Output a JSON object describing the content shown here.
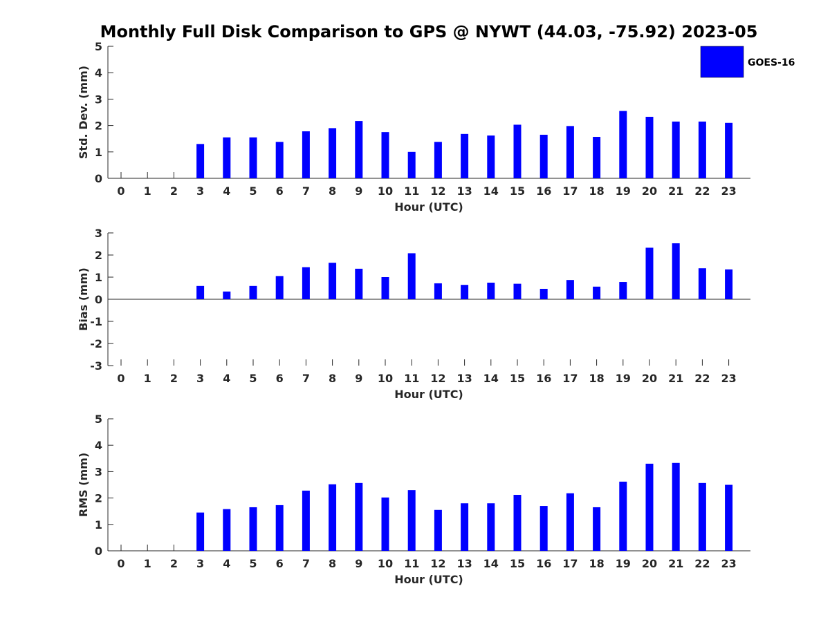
{
  "title": "Monthly Full Disk Comparison to GPS @ NYWT (44.03, -75.92) 2023-05",
  "legend": {
    "label": "GOES-16",
    "color": "#0000ff",
    "placement": "top-right"
  },
  "chart_data": [
    {
      "type": "bar",
      "categories": [
        "0",
        "1",
        "2",
        "3",
        "4",
        "5",
        "6",
        "7",
        "8",
        "9",
        "10",
        "11",
        "12",
        "13",
        "14",
        "15",
        "16",
        "17",
        "18",
        "19",
        "20",
        "21",
        "22",
        "23"
      ],
      "series": [
        {
          "name": "GOES-16",
          "values": [
            null,
            null,
            null,
            1.3,
            1.55,
            1.55,
            1.38,
            1.78,
            1.9,
            2.17,
            1.75,
            1.0,
            1.38,
            1.68,
            1.62,
            2.03,
            1.65,
            1.98,
            1.57,
            2.55,
            2.33,
            2.15,
            2.15,
            2.1
          ]
        }
      ],
      "xlabel": "Hour (UTC)",
      "ylabel": "Std. Dev. (mm)",
      "ylim": [
        0,
        5
      ],
      "yticks": [
        "0",
        "1",
        "2",
        "3",
        "4",
        "5"
      ],
      "grid": false
    },
    {
      "type": "bar",
      "categories": [
        "0",
        "1",
        "2",
        "3",
        "4",
        "5",
        "6",
        "7",
        "8",
        "9",
        "10",
        "11",
        "12",
        "13",
        "14",
        "15",
        "16",
        "17",
        "18",
        "19",
        "20",
        "21",
        "22",
        "23"
      ],
      "series": [
        {
          "name": "GOES-16",
          "values": [
            null,
            null,
            null,
            0.6,
            0.35,
            0.6,
            1.05,
            1.45,
            1.65,
            1.38,
            1.0,
            2.08,
            0.72,
            0.65,
            0.75,
            0.7,
            0.47,
            0.87,
            0.57,
            0.78,
            2.33,
            2.53,
            1.4,
            1.35
          ]
        }
      ],
      "xlabel": "Hour (UTC)",
      "ylabel": "Bias (mm)",
      "ylim": [
        -3,
        3
      ],
      "yticks": [
        "-3",
        "-2",
        "-1",
        "0",
        "1",
        "2",
        "3"
      ],
      "grid": false
    },
    {
      "type": "bar",
      "categories": [
        "0",
        "1",
        "2",
        "3",
        "4",
        "5",
        "6",
        "7",
        "8",
        "9",
        "10",
        "11",
        "12",
        "13",
        "14",
        "15",
        "16",
        "17",
        "18",
        "19",
        "20",
        "21",
        "22",
        "23"
      ],
      "series": [
        {
          "name": "GOES-16",
          "values": [
            null,
            null,
            null,
            1.45,
            1.58,
            1.65,
            1.73,
            2.28,
            2.52,
            2.57,
            2.02,
            2.3,
            1.55,
            1.8,
            1.8,
            2.12,
            1.7,
            2.18,
            1.65,
            2.62,
            3.3,
            3.33,
            2.57,
            2.5
          ]
        }
      ],
      "xlabel": "Hour (UTC)",
      "ylabel": "RMS (mm)",
      "ylim": [
        0,
        5
      ],
      "yticks": [
        "0",
        "1",
        "2",
        "3",
        "4",
        "5"
      ],
      "grid": false
    }
  ]
}
